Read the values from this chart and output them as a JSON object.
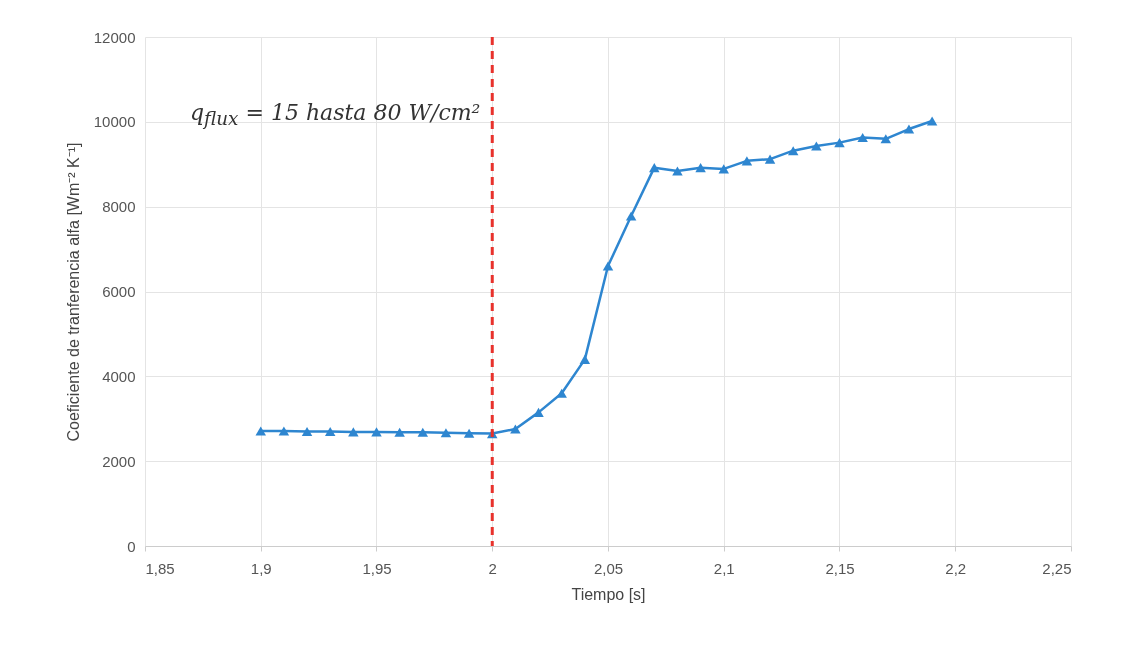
{
  "chart_data": {
    "type": "line",
    "xlabel": "Tiempo [s]",
    "ylabel": "Coeficiente de tranferencia alfa [Wm⁻² K⁻¹]",
    "x": [
      1.9,
      1.91,
      1.92,
      1.93,
      1.94,
      1.95,
      1.96,
      1.97,
      1.98,
      1.99,
      2.0,
      2.01,
      2.02,
      2.03,
      2.04,
      2.05,
      2.06,
      2.07,
      2.08,
      2.09,
      2.1,
      2.11,
      2.12,
      2.13,
      2.14,
      2.15,
      2.16,
      2.17,
      2.18,
      2.19
    ],
    "series": [
      {
        "color": "#2e86d0",
        "values": [
          2710,
          2710,
          2700,
          2700,
          2690,
          2690,
          2680,
          2680,
          2670,
          2660,
          2650,
          2760,
          3150,
          3600,
          4400,
          6600,
          7780,
          8920,
          8840,
          8920,
          8890,
          9080,
          9120,
          9320,
          9430,
          9510,
          9630,
          9600,
          9830,
          10020
        ]
      }
    ],
    "xlim": [
      1.85,
      2.25
    ],
    "xticks": [
      {
        "value": 1.85,
        "label": "1,85"
      },
      {
        "value": 1.9,
        "label": "1,9"
      },
      {
        "value": 1.95,
        "label": "1,95"
      },
      {
        "value": 2,
        "label": "2"
      },
      {
        "value": 2.05,
        "label": "2,05"
      },
      {
        "value": 2.1,
        "label": "2,1"
      },
      {
        "value": 2.15,
        "label": "2,15"
      },
      {
        "value": 2.2,
        "label": "2,2"
      },
      {
        "value": 2.25,
        "label": "2,25"
      }
    ],
    "ylim": [
      0,
      12000
    ],
    "yticks": [
      0,
      2000,
      4000,
      6000,
      8000,
      10000,
      12000
    ],
    "ref_lines": [
      {
        "axis": "x",
        "value": 2,
        "color": "#e8322c",
        "line_style": "dashed"
      }
    ],
    "annotations": [
      "q$_{flux}$ = 15 hasta 80 W/cm²"
    ],
    "grid": true,
    "marker": "triangle",
    "line_style": "solid"
  }
}
